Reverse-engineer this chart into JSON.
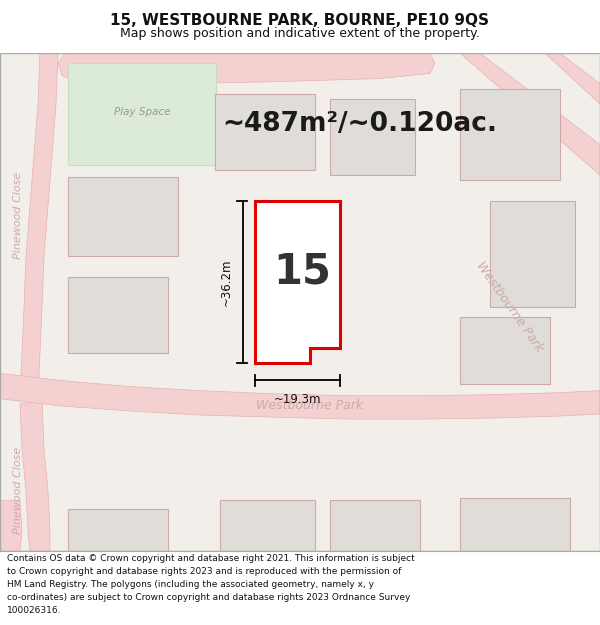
{
  "title": "15, WESTBOURNE PARK, BOURNE, PE10 9QS",
  "subtitle": "Map shows position and indicative extent of the property.",
  "area_text": "~487m²/~0.120ac.",
  "property_number": "15",
  "dim_width": "~19.3m",
  "dim_height": "~36.2m",
  "map_bg": "#f2efea",
  "property_fill": "#ffffff",
  "property_edge": "#dd0000",
  "road_color": "#f5d0d0",
  "road_stroke": "#e8b0b0",
  "building_fill": "#e0ddd8",
  "building_stroke": "#ccaaaa",
  "green_fill": "#dcebd8",
  "green_stroke": "#c8dcc4",
  "road_label_westbourne": "Westbourne Park",
  "road_label_pinewood": "Pinewood Close",
  "title_fontsize": 11,
  "subtitle_fontsize": 9,
  "area_fontsize": 19,
  "number_fontsize": 30,
  "footer_fontsize": 6.5,
  "footer_lines": [
    "Contains OS data © Crown copyright and database right 2021. This information is subject",
    "to Crown copyright and database rights 2023 and is reproduced with the permission of",
    "HM Land Registry. The polygons (including the associated geometry, namely x, y",
    "co-ordinates) are subject to Crown copyright and database rights 2023 Ordnance Survey",
    "100026316."
  ]
}
